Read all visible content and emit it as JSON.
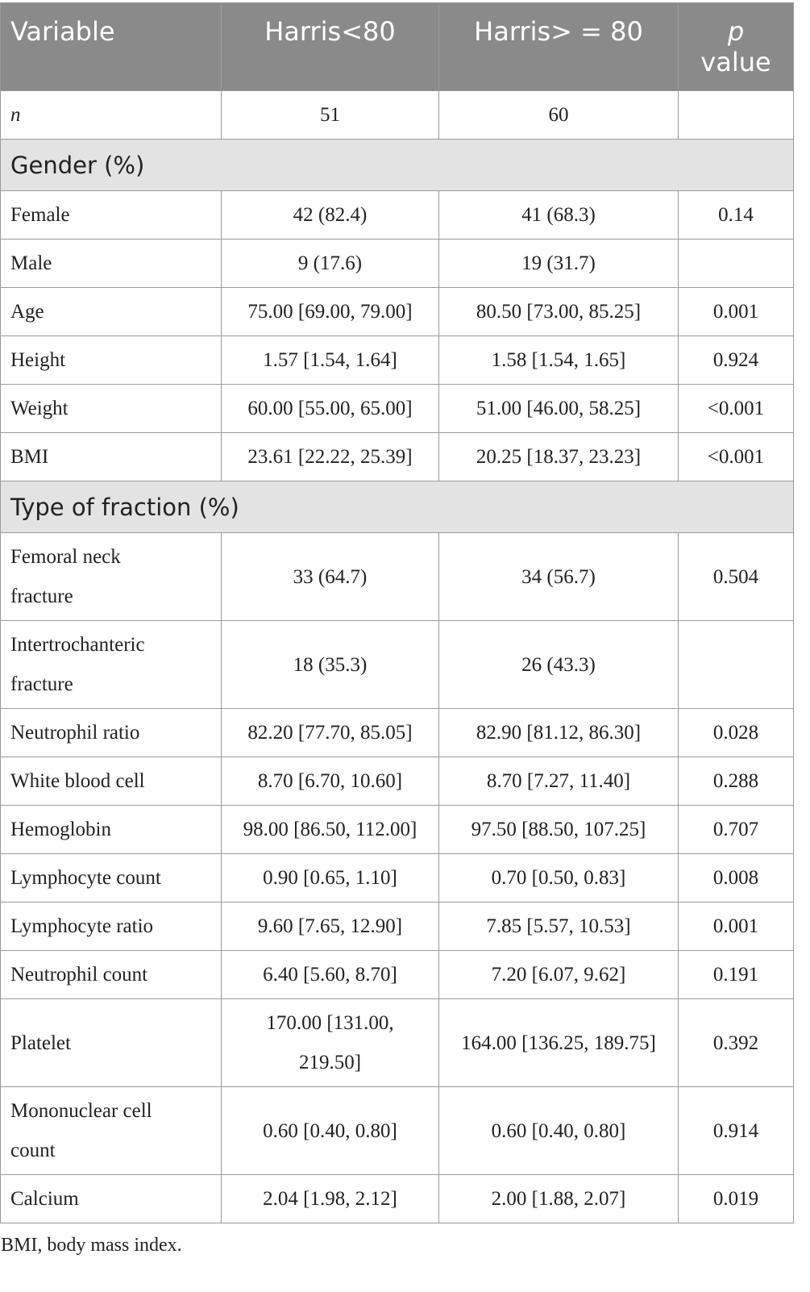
{
  "header": {
    "variable": "Variable",
    "harris_lt80": "Harris<80",
    "harris_ge80": "Harris> = 80",
    "p_label": "p",
    "value_label": "value"
  },
  "n_row": {
    "label": "n",
    "lt80": "51",
    "ge80": "60",
    "p": ""
  },
  "sections": {
    "gender": "Gender (%)",
    "fraction": "Type of fraction (%)"
  },
  "gender_rows": [
    {
      "label": "Female",
      "lt80": "42 (82.4)",
      "ge80": "41 (68.3)",
      "p": "0.14"
    },
    {
      "label": "Male",
      "lt80": "9 (17.6)",
      "ge80": "19 (31.7)",
      "p": ""
    },
    {
      "label": "Age",
      "lt80": "75.00 [69.00, 79.00]",
      "ge80": "80.50 [73.00, 85.25]",
      "p": "0.001"
    },
    {
      "label": "Height",
      "lt80": "1.57 [1.54, 1.64]",
      "ge80": "1.58 [1.54, 1.65]",
      "p": "0.924"
    },
    {
      "label": "Weight",
      "lt80": "60.00 [55.00, 65.00]",
      "ge80": "51.00 [46.00, 58.25]",
      "p": "<0.001"
    },
    {
      "label": "BMI",
      "lt80": "23.61 [22.22, 25.39]",
      "ge80": "20.25 [18.37, 23.23]",
      "p": "<0.001"
    }
  ],
  "fraction_rows": [
    {
      "label_line1": "Femoral neck",
      "label_line2": "fracture",
      "lt80": "33 (64.7)",
      "ge80": "34 (56.7)",
      "p": "0.504"
    },
    {
      "label_line1": "Intertrochanteric",
      "label_line2": "fracture",
      "lt80": "18 (35.3)",
      "ge80": "26 (43.3)",
      "p": ""
    },
    {
      "label": "Neutrophil ratio",
      "lt80": "82.20 [77.70, 85.05]",
      "ge80": "82.90 [81.12, 86.30]",
      "p": "0.028"
    },
    {
      "label": "White blood cell",
      "lt80": "8.70 [6.70, 10.60]",
      "ge80": "8.70 [7.27, 11.40]",
      "p": "0.288"
    },
    {
      "label": "Hemoglobin",
      "lt80": "98.00 [86.50, 112.00]",
      "ge80": "97.50 [88.50, 107.25]",
      "p": "0.707"
    },
    {
      "label": "Lymphocyte count",
      "lt80": "0.90 [0.65, 1.10]",
      "ge80": "0.70 [0.50, 0.83]",
      "p": "0.008"
    },
    {
      "label": "Lymphocyte ratio",
      "lt80": "9.60 [7.65, 12.90]",
      "ge80": "7.85 [5.57, 10.53]",
      "p": "0.001"
    },
    {
      "label": "Neutrophil count",
      "lt80": "6.40 [5.60, 8.70]",
      "ge80": "7.20 [6.07, 9.62]",
      "p": "0.191"
    },
    {
      "label": "Platelet",
      "lt80_line1": "170.00 [131.00,",
      "lt80_line2": "219.50]",
      "ge80": "164.00 [136.25, 189.75]",
      "p": "0.392"
    },
    {
      "label_line1": "Mononuclear cell",
      "label_line2": "count",
      "lt80": "0.60 [0.40, 0.80]",
      "ge80": "0.60 [0.40, 0.80]",
      "p": "0.914"
    },
    {
      "label": "Calcium",
      "lt80": "2.04 [1.98, 2.12]",
      "ge80": "2.00 [1.88, 2.07]",
      "p": "0.019"
    }
  ],
  "footnote": "BMI, body mass index."
}
